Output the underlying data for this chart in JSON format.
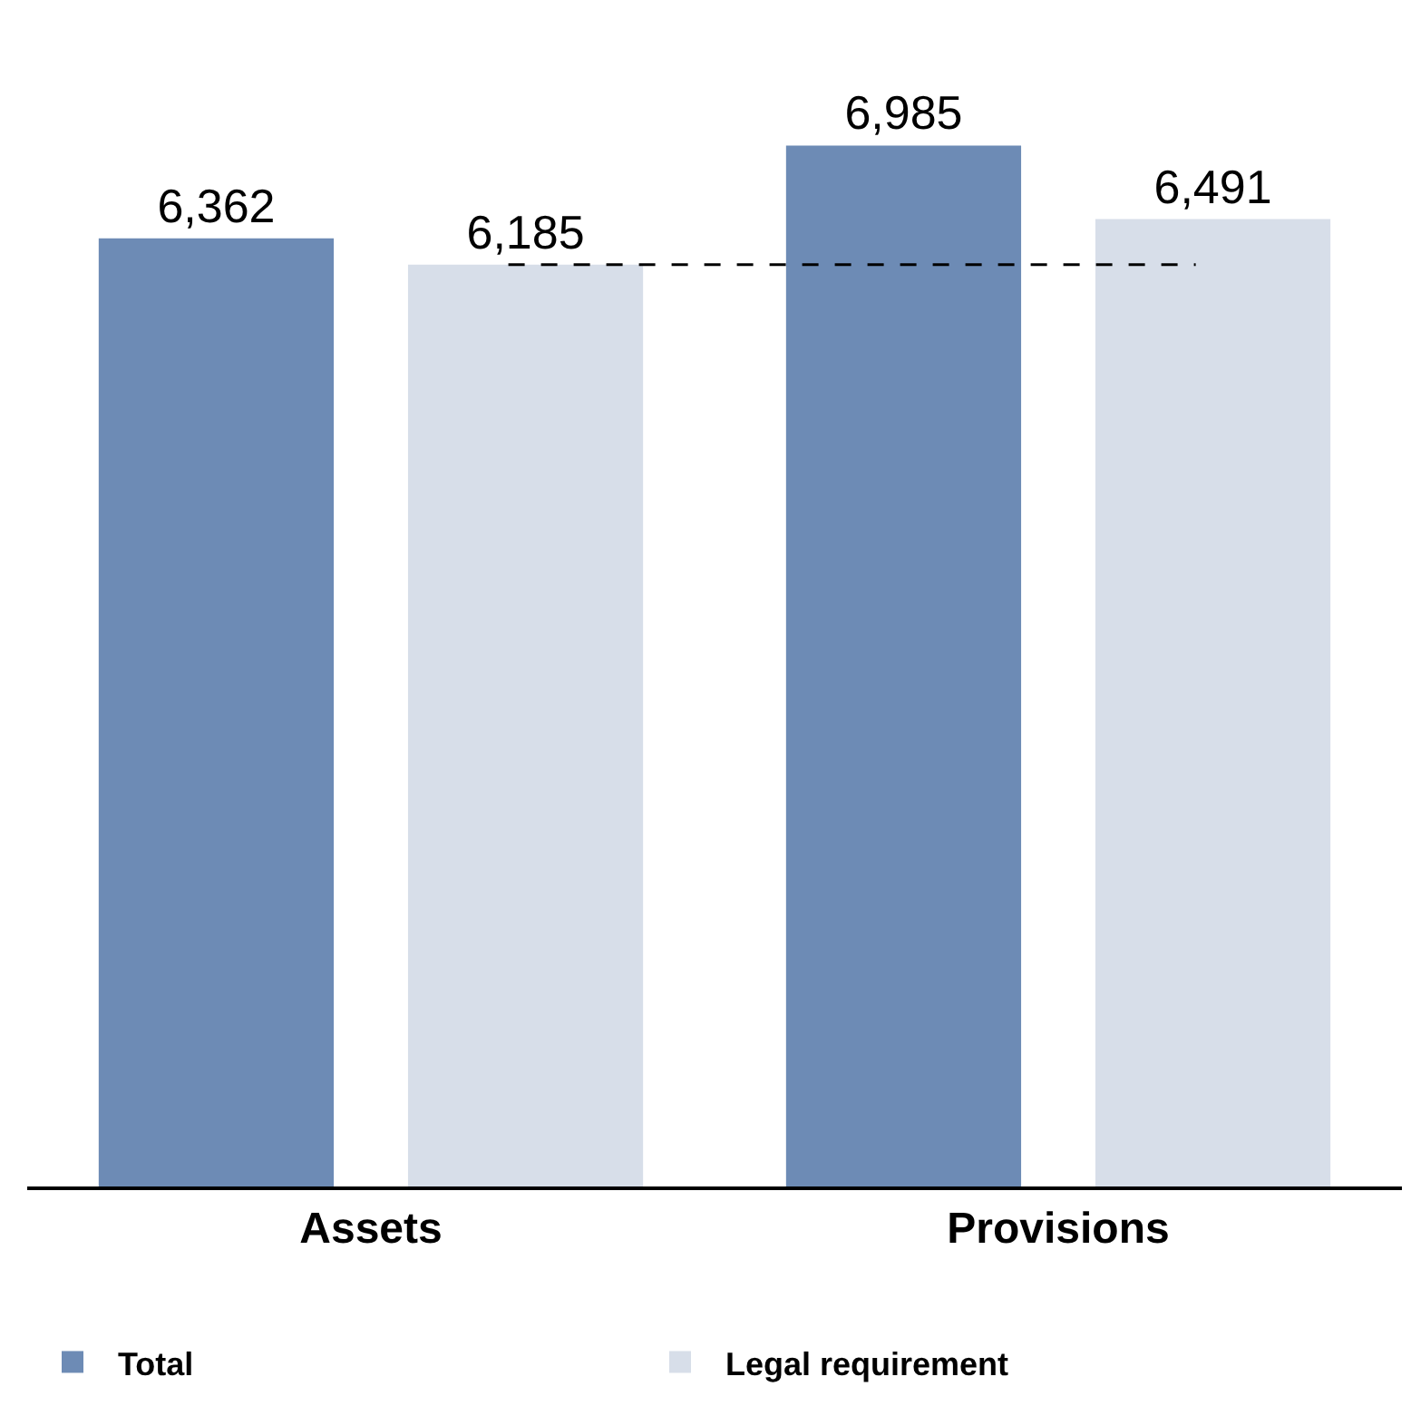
{
  "chart_data": {
    "type": "bar",
    "categories": [
      "Assets",
      "Provisions"
    ],
    "series": [
      {
        "name": "Total",
        "color": "#6d8bb5",
        "values": [
          6362,
          6985
        ],
        "value_labels": [
          "6,362",
          "6,985"
        ]
      },
      {
        "name": "Legal requirement",
        "color": "#d7dee9",
        "values": [
          6185,
          6491
        ],
        "value_labels": [
          "6,185",
          "6,491"
        ]
      }
    ],
    "grid": false,
    "legend": "bottom",
    "ref_lines": [
      {
        "axis": "y",
        "value": 6185,
        "label": null,
        "color": "#000000",
        "line_style": "dashed"
      }
    ]
  }
}
